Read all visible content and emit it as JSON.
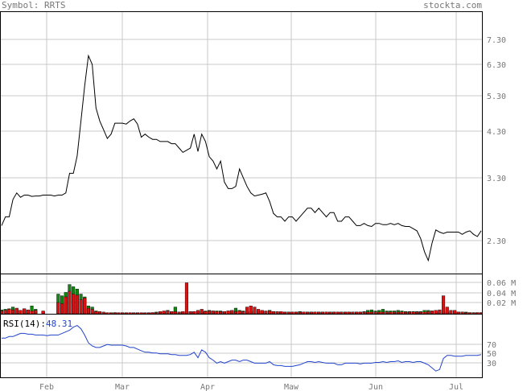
{
  "header": {
    "symbol_text": "Symbol: RRTS",
    "site": "stockta.com"
  },
  "colors": {
    "price_line": "#000000",
    "rsi_line": "#2244cc",
    "up_volume": "#118811",
    "down_volume": "#dd1111",
    "grid": "#c8c8c8",
    "label": "#777777"
  },
  "chart_data": [
    {
      "type": "line",
      "title": "",
      "x_ticks": [
        "Feb",
        "Mar",
        "Apr",
        "Maw",
        "Jun",
        "Jul"
      ],
      "y_ticks": [
        "7.30",
        "6.30",
        "5.30",
        "4.30",
        "3.30",
        "2.30"
      ],
      "ylim": [
        1.9,
        7.9
      ],
      "series": [
        {
          "x": [
            0,
            1,
            2,
            3,
            4,
            5,
            6,
            7,
            8,
            9,
            10,
            11,
            12,
            13,
            14,
            15,
            16,
            17,
            18,
            19,
            20,
            21,
            22,
            23,
            24,
            25,
            26,
            27,
            28,
            29,
            30,
            31,
            32,
            33,
            34,
            35,
            36,
            37,
            38,
            39,
            40,
            41,
            42,
            43,
            44,
            45,
            46,
            47,
            48,
            49,
            50,
            51,
            52,
            53,
            54,
            55,
            56,
            57,
            58,
            59,
            60,
            61,
            62,
            63,
            64,
            65,
            66,
            67,
            68,
            69,
            70,
            71,
            72,
            73,
            74,
            75,
            76,
            77,
            78,
            79,
            80,
            81,
            82,
            83,
            84,
            85,
            86,
            87,
            88,
            89,
            90,
            91,
            92,
            93,
            94,
            95,
            96,
            97,
            98,
            99,
            100,
            101,
            102,
            103,
            104,
            105,
            106,
            107,
            108,
            109,
            110,
            111,
            112,
            113,
            114,
            115,
            116,
            117,
            118,
            119,
            120,
            121,
            122,
            123,
            124,
            125,
            126,
            127
          ],
          "values": [
            3.0,
            3.2,
            3.2,
            3.6,
            3.75,
            3.65,
            3.7,
            3.7,
            3.67,
            3.68,
            3.68,
            3.7,
            3.7,
            3.7,
            3.68,
            3.7,
            3.7,
            3.75,
            4.2,
            4.2,
            4.6,
            5.4,
            6.2,
            6.9,
            6.7,
            5.7,
            5.4,
            5.2,
            5.0,
            5.1,
            5.35,
            5.35,
            5.35,
            5.33,
            5.4,
            5.45,
            5.33,
            5.03,
            5.1,
            5.03,
            4.98,
            4.98,
            4.93,
            4.93,
            4.93,
            4.88,
            4.88,
            4.78,
            4.68,
            4.73,
            4.78,
            5.1,
            4.7,
            5.1,
            4.93,
            4.58,
            4.48,
            4.3,
            4.48,
            4.0,
            3.85,
            3.85,
            3.9,
            4.3,
            4.1,
            3.9,
            3.75,
            3.68,
            3.7,
            3.72,
            3.75,
            3.55,
            3.28,
            3.2,
            3.2,
            3.1,
            3.2,
            3.2,
            3.1,
            3.2,
            3.3,
            3.4,
            3.4,
            3.3,
            3.4,
            3.3,
            3.2,
            3.3,
            3.3,
            3.1,
            3.1,
            3.2,
            3.2,
            3.1,
            3.0,
            3.0,
            3.05,
            3.0,
            2.98,
            3.05,
            3.05,
            3.02,
            3.02,
            3.05,
            3.02,
            3.05,
            3.0,
            2.98,
            2.98,
            2.93,
            2.88,
            2.7,
            2.4,
            2.2,
            2.6,
            2.9,
            2.85,
            2.82,
            2.85,
            2.85,
            2.85,
            2.85,
            2.8,
            2.85,
            2.88,
            2.8,
            2.75,
            2.88
          ]
        }
      ]
    },
    {
      "type": "bar",
      "title": "",
      "y_ticks": [
        "0.06 M",
        "0.04 M",
        "0.02 M"
      ],
      "ylim": [
        0,
        0.07
      ],
      "series": [
        {
          "name": "",
          "color": "#118811",
          "values": [
            0.007,
            0.008,
            0.009,
            0.012,
            0.008,
            0.006,
            0.009,
            0.006,
            0.014,
            0.008,
            0,
            0.004,
            0,
            0,
            0,
            0.035,
            0.032,
            0.038,
            0.052,
            0.048,
            0.044,
            0.035,
            0.03,
            0.014,
            0.012,
            0.005,
            0.003,
            0.002,
            0.001,
            0.001,
            0.002,
            0.001,
            0.001,
            0.001,
            0.001,
            0.001,
            0.001,
            0.001,
            0.001,
            0.001,
            0.002,
            0.003,
            0.003,
            0.003,
            0.006,
            0.004,
            0.012,
            0.003,
            0.003,
            0.005,
            0.004,
            0.004,
            0.004,
            0.004,
            0.005,
            0.006,
            0.005,
            0.005,
            0.005,
            0.004,
            0.005,
            0.005,
            0.01,
            0.006,
            0.005,
            0.004,
            0.004,
            0.005,
            0.005,
            0.005,
            0.004,
            0.006,
            0.004,
            0.003,
            0.003,
            0.003,
            0.003,
            0.003,
            0.003,
            0.004,
            0.003,
            0.003,
            0.003,
            0.003,
            0.003,
            0.003,
            0.003,
            0.003,
            0.003,
            0.003,
            0.003,
            0.003,
            0.003,
            0.003,
            0.003,
            0.003,
            0.004,
            0.006,
            0.007,
            0.005,
            0.006,
            0.008,
            0.005,
            0.005,
            0.005,
            0.006,
            0.005,
            0.004,
            0.004,
            0.004,
            0.004,
            0.004,
            0.006,
            0.006,
            0.005,
            0.003,
            0.004,
            0.005,
            0.003,
            0.003,
            0.004,
            0.003,
            0.003,
            0.003,
            0.002,
            0.002,
            0.002,
            0.002
          ]
        },
        {
          "name": "",
          "color": "#dd1111",
          "values": [
            0.005,
            0.006,
            0.008,
            0.007,
            0.01,
            0.006,
            0.009,
            0.007,
            0.005,
            0.006,
            0,
            0.005,
            0,
            0,
            0,
            0.02,
            0.018,
            0.03,
            0.04,
            0.035,
            0.033,
            0.025,
            0.028,
            0.01,
            0.008,
            0.004,
            0.004,
            0.003,
            0.002,
            0.002,
            0.002,
            0.002,
            0.002,
            0.002,
            0.002,
            0.002,
            0.002,
            0.002,
            0.002,
            0.002,
            0.002,
            0.002,
            0.004,
            0.005,
            0.005,
            0.004,
            0.004,
            0.003,
            0.004,
            0.055,
            0.004,
            0.004,
            0.006,
            0.008,
            0.004,
            0.005,
            0.005,
            0.004,
            0.004,
            0.004,
            0.005,
            0.006,
            0.004,
            0.005,
            0.004,
            0.012,
            0.014,
            0.012,
            0.008,
            0.006,
            0.005,
            0.005,
            0.004,
            0.004,
            0.004,
            0.003,
            0.003,
            0.003,
            0.003,
            0.003,
            0.003,
            0.003,
            0.003,
            0.003,
            0.003,
            0.003,
            0.003,
            0.003,
            0.003,
            0.003,
            0.003,
            0.003,
            0.003,
            0.003,
            0.003,
            0.003,
            0.003,
            0.003,
            0.003,
            0.003,
            0.003,
            0.003,
            0.003,
            0.003,
            0.003,
            0.003,
            0.003,
            0.003,
            0.003,
            0.003,
            0.003,
            0.003,
            0.003,
            0.004,
            0.005,
            0.006,
            0.007,
            0.032,
            0.012,
            0.006,
            0.006,
            0.003,
            0.003,
            0.002,
            0.002,
            0.002,
            0.002,
            0.002
          ]
        }
      ]
    },
    {
      "type": "line",
      "title": "",
      "legend_label": "RSI(14):",
      "legend_value": "48.31",
      "y_ticks": [
        "70",
        "50",
        "30"
      ],
      "ylim": [
        20,
        100
      ],
      "series": [
        {
          "values": [
            70,
            70,
            72,
            72,
            74,
            76,
            76,
            75,
            75,
            74,
            74,
            74,
            73,
            74,
            74,
            74,
            76,
            78,
            80,
            84,
            86,
            82,
            74,
            64,
            60,
            58,
            58,
            60,
            62,
            61,
            61,
            61,
            61,
            60,
            58,
            58,
            56,
            54,
            52,
            52,
            51,
            51,
            50,
            50,
            50,
            49,
            49,
            48,
            48,
            48,
            49,
            52,
            45,
            55,
            52,
            45,
            42,
            38,
            40,
            38,
            40,
            42,
            42,
            40,
            42,
            42,
            40,
            38,
            38,
            38,
            38,
            40,
            36,
            35,
            35,
            34,
            34,
            34,
            35,
            36,
            38,
            40,
            40,
            39,
            40,
            39,
            38,
            38,
            38,
            36,
            36,
            38,
            38,
            38,
            38,
            37,
            38,
            38,
            38,
            39,
            39,
            40,
            39,
            40,
            40,
            41,
            39,
            40,
            40,
            39,
            40,
            40,
            38,
            36,
            32,
            28,
            30,
            44,
            48,
            48,
            47,
            47,
            47,
            48,
            48,
            48,
            48,
            49
          ]
        }
      ]
    }
  ]
}
